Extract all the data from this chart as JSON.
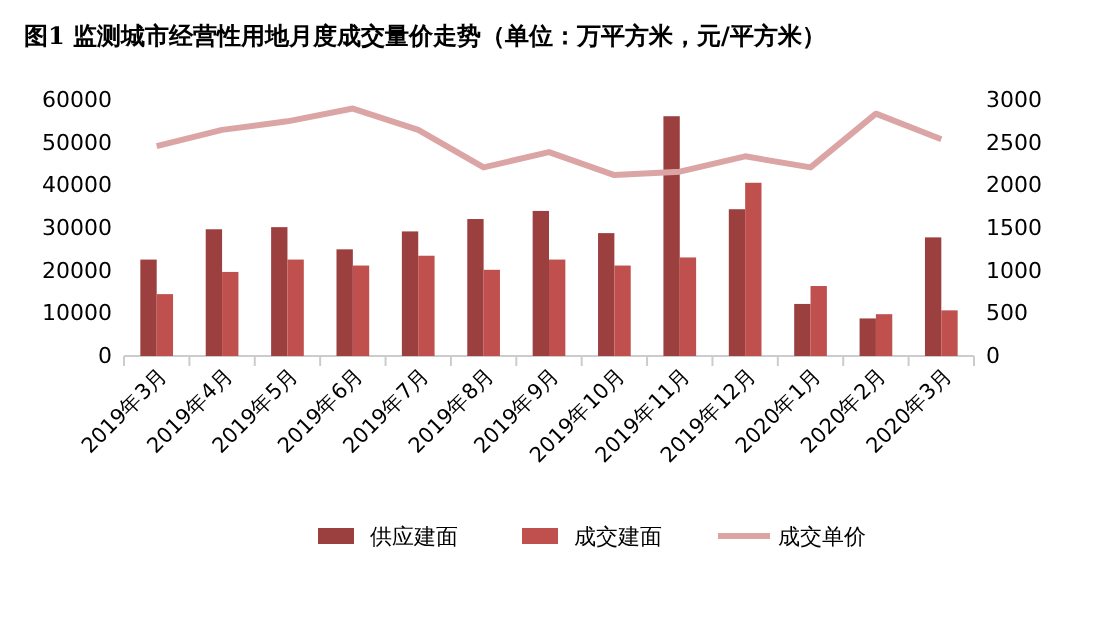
{
  "chart_data": {
    "type": "bar",
    "title": "图1  监测城市经营性用地月度成交量价走势（单位：万平方米，元/平方米）",
    "categories": [
      "2019年3月",
      "2019年4月",
      "2019年5月",
      "2019年6月",
      "2019年7月",
      "2019年8月",
      "2019年9月",
      "2019年10月",
      "2019年11月",
      "2019年12月",
      "2020年1月",
      "2020年2月",
      "2020年3月"
    ],
    "series": [
      {
        "name": "供应建面",
        "color": "#9c3f3f",
        "values": [
          22600,
          29700,
          30200,
          25000,
          29200,
          32100,
          34000,
          28800,
          56200,
          34400,
          12200,
          8800,
          27800
        ]
      },
      {
        "name": "成交建面",
        "color": "#c0504d",
        "values": [
          14500,
          19700,
          22600,
          21200,
          23500,
          20200,
          22600,
          21200,
          23100,
          40600,
          16400,
          9800,
          10700
        ]
      },
      {
        "name": "成交单价",
        "color": "#dba5a5",
        "type": "line",
        "axis": "y2",
        "values": [
          2460,
          2650,
          2750,
          2900,
          2650,
          2210,
          2390,
          2120,
          2160,
          2340,
          2210,
          2840,
          2540
        ]
      }
    ],
    "ylim": [
      0,
      60000
    ],
    "yticks": [
      0,
      10000,
      20000,
      30000,
      40000,
      50000,
      60000
    ],
    "y2lim": [
      0,
      3000
    ],
    "y2ticks": [
      0,
      500,
      1000,
      1500,
      2000,
      2500,
      3000
    ],
    "legend": "bottom",
    "grid": false,
    "marker": "none"
  }
}
